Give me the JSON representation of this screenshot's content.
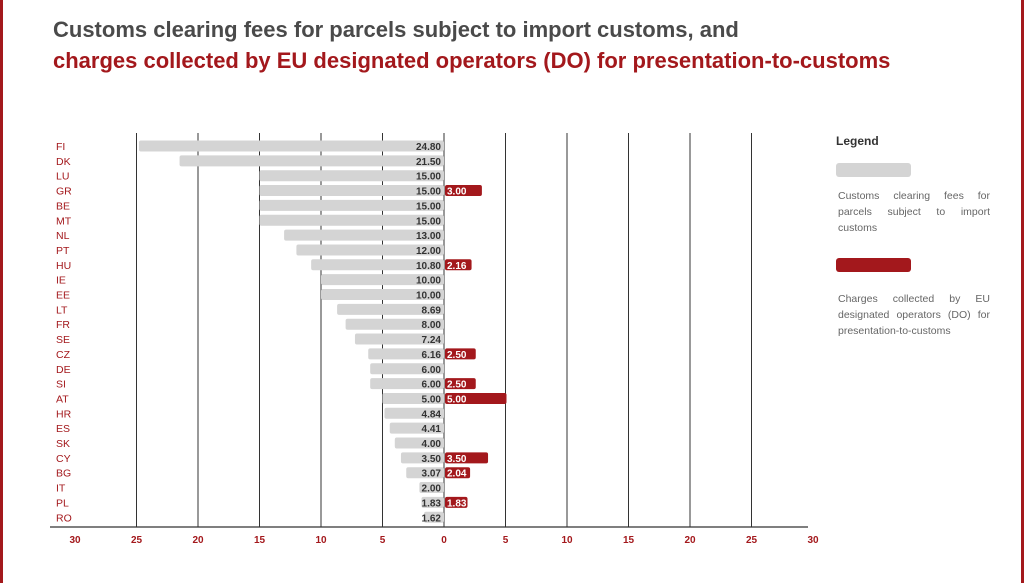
{
  "title": {
    "line1": "Customs clearing fees for parcels subject to import customs, and",
    "line2": "charges collected by EU designated operators (DO) for presentation-to-customs"
  },
  "legend": {
    "title": "Legend",
    "items": [
      {
        "label": "Customs clearing fees for parcels subject to import customs",
        "color": "#d4d4d4"
      },
      {
        "label": "Charges collected by EU designated operators (DO) for presentation-to-customs",
        "color": "#a3181c"
      }
    ]
  },
  "colors": {
    "grey_bar": "#d4d4d4",
    "red_bar": "#a3181c",
    "country_label": "#a3181c",
    "axis_label": "#a3181c",
    "value_text": "#333333",
    "grid": "#333333"
  },
  "chart_data": {
    "type": "bar",
    "orientation": "horizontal-diverging",
    "categories": [
      "FI",
      "DK",
      "LU",
      "GR",
      "BE",
      "MT",
      "NL",
      "PT",
      "HU",
      "IE",
      "EE",
      "LT",
      "FR",
      "SE",
      "CZ",
      "DE",
      "SI",
      "AT",
      "HR",
      "ES",
      "SK",
      "CY",
      "BG",
      "IT",
      "PL",
      "RO"
    ],
    "series": [
      {
        "name": "Customs clearing fees for parcels subject to import customs",
        "direction": "left",
        "values": [
          24.8,
          21.5,
          15.0,
          15.0,
          15.0,
          15.0,
          13.0,
          12.0,
          10.8,
          10.0,
          10.0,
          8.69,
          8.0,
          7.24,
          6.16,
          6.0,
          6.0,
          5.0,
          4.84,
          4.41,
          4.0,
          3.5,
          3.07,
          2.0,
          1.83,
          1.62
        ],
        "labels": [
          "24.80",
          "21.50",
          "15.00",
          "15.00",
          "15.00",
          "15.00",
          "13.00",
          "12.00",
          "10.80",
          "10.00",
          "10.00",
          "8.69",
          "8.00",
          "7.24",
          "6.16",
          "6.00",
          "6.00",
          "5.00",
          "4.84",
          "4.41",
          "4.00",
          "3.50",
          "3.07",
          "2.00",
          "1.83",
          "1.62"
        ]
      },
      {
        "name": "Charges collected by EU designated operators (DO) for presentation-to-customs",
        "direction": "right",
        "values": [
          null,
          null,
          null,
          3.0,
          null,
          null,
          null,
          null,
          2.16,
          null,
          null,
          null,
          null,
          null,
          2.5,
          null,
          2.5,
          5.0,
          null,
          null,
          null,
          3.5,
          2.04,
          null,
          1.83,
          null
        ],
        "labels": [
          null,
          null,
          null,
          "3.00",
          null,
          null,
          null,
          null,
          "2.16",
          null,
          null,
          null,
          null,
          null,
          "2.50",
          null,
          "2.50",
          "5.00",
          null,
          null,
          null,
          "3.50",
          "2.04",
          null,
          "1.83",
          null
        ]
      }
    ],
    "x_ticks": [
      "30",
      "25",
      "20",
      "15",
      "10",
      "5",
      "0",
      "5",
      "10",
      "15",
      "20",
      "25",
      "30"
    ],
    "xlim": [
      -30,
      30
    ],
    "grid": true,
    "legend_position": "right"
  }
}
